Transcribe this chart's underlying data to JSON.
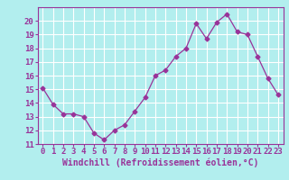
{
  "x": [
    0,
    1,
    2,
    3,
    4,
    5,
    6,
    7,
    8,
    9,
    10,
    11,
    12,
    13,
    14,
    15,
    16,
    17,
    18,
    19,
    20,
    21,
    22,
    23
  ],
  "y": [
    15.1,
    13.9,
    13.2,
    13.2,
    13.0,
    11.8,
    11.3,
    12.0,
    12.4,
    13.4,
    14.4,
    16.0,
    16.4,
    17.4,
    18.0,
    19.8,
    18.7,
    19.9,
    20.5,
    19.2,
    19.0,
    17.4,
    15.8,
    14.6
  ],
  "line_color": "#993399",
  "marker": "D",
  "marker_size": 2.5,
  "bg_color": "#b2eeee",
  "grid_color": "#ffffff",
  "xlabel": "Windchill (Refroidissement éolien,°C)",
  "ylim": [
    11,
    21
  ],
  "xlim_left": -0.5,
  "xlim_right": 23.5,
  "yticks": [
    11,
    12,
    13,
    14,
    15,
    16,
    17,
    18,
    19,
    20
  ],
  "xticks": [
    0,
    1,
    2,
    3,
    4,
    5,
    6,
    7,
    8,
    9,
    10,
    11,
    12,
    13,
    14,
    15,
    16,
    17,
    18,
    19,
    20,
    21,
    22,
    23
  ],
  "xlabel_color": "#993399",
  "tick_color": "#993399",
  "axis_color": "#993399",
  "label_fontsize": 7,
  "tick_fontsize": 6.5
}
